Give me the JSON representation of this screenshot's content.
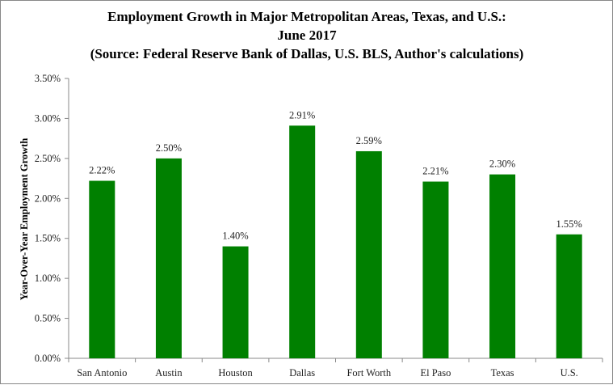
{
  "chart_data": {
    "type": "bar",
    "title": [
      "Employment Growth in Major Metropolitan Areas, Texas, and U.S.:",
      "June 2017",
      "(Source: Federal Reserve Bank of Dallas, U.S. BLS, Author's calculations)"
    ],
    "xlabel": "",
    "ylabel": "Year-Over-Year Employment Growth",
    "categories": [
      "San Antonio",
      "Austin",
      "Houston",
      "Dallas",
      "Fort Worth",
      "El Paso",
      "Texas",
      "U.S."
    ],
    "values": [
      2.22,
      2.5,
      1.4,
      2.91,
      2.59,
      2.21,
      2.3,
      1.55
    ],
    "data_labels": [
      "2.22%",
      "2.50%",
      "1.40%",
      "2.91%",
      "2.59%",
      "2.21%",
      "2.30%",
      "1.55%"
    ],
    "ylim": [
      0,
      3.5
    ],
    "yticks": [
      "0.00%",
      "0.50%",
      "1.00%",
      "1.50%",
      "2.00%",
      "2.50%",
      "3.00%",
      "3.50%"
    ],
    "grid": false,
    "legend": "none",
    "bar_color": "#008000"
  }
}
